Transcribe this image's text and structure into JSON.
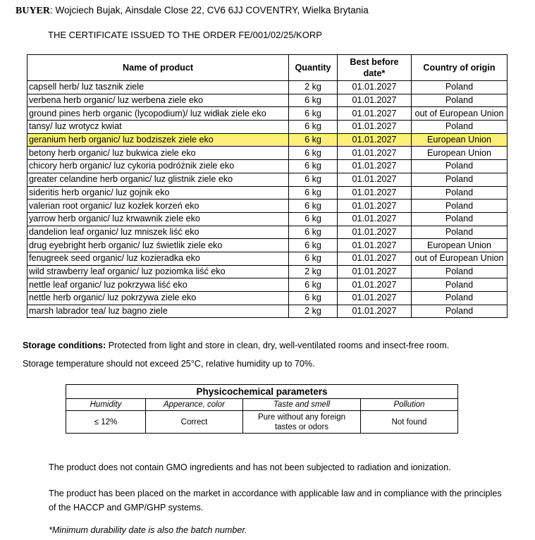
{
  "buyer": {
    "label": "BUYER",
    "text": ": Wojciech Bujak, Ainsdale Close 22, CV6 6JJ COVENTRY, Wielka Brytania"
  },
  "order_title": "THE CERTIFICATE ISSUED TO THE ORDER FE/001/02/25/KORP",
  "products_table": {
    "headers": [
      "Name of product",
      "Quantity",
      "Best before date*",
      "Country of origin"
    ],
    "highlight_color": "#fdf07a",
    "rows": [
      {
        "name": "capsell herb/ luz tasznik ziele",
        "qty": "2 kg",
        "date": "01.01.2027",
        "origin": "Poland"
      },
      {
        "name": "verbena herb organic/ luz werbena ziele eko",
        "qty": "6 kg",
        "date": "01.01.2027",
        "origin": "Poland"
      },
      {
        "name": "ground pines herb organic (lycopodium)/ luz widłak ziele eko",
        "qty": "6 kg",
        "date": "01.01.2027",
        "origin": "out of European Union"
      },
      {
        "name": "tansy/ luz wrotycz kwiat",
        "qty": "6 kg",
        "date": "01.01.2027",
        "origin": "Poland"
      },
      {
        "name": "geranium herb organic/ luz bodziszek ziele eko",
        "qty": "6 kg",
        "date": "01.01.2027",
        "origin": "European Union",
        "highlighted": true
      },
      {
        "name": "betony herb organic/ luz bukwica ziele eko",
        "qty": "6 kg",
        "date": "01.01.2027",
        "origin": "European Union"
      },
      {
        "name": "chicory herb organic/ luz cykoria podróżnik ziele eko",
        "qty": "6 kg",
        "date": "01.01.2027",
        "origin": "Poland"
      },
      {
        "name": "greater celandine herb organic/ luz glistnik ziele eko",
        "qty": "6 kg",
        "date": "01.01.2027",
        "origin": "Poland"
      },
      {
        "name": "sideritis herb organic/ luz gojnik eko",
        "qty": "6 kg",
        "date": "01.01.2027",
        "origin": "Poland"
      },
      {
        "name": "valerian root organic/ luz kozłek korzeń eko",
        "qty": "6 kg",
        "date": "01.01.2027",
        "origin": "Poland"
      },
      {
        "name": "yarrow herb organic/ luz krwawnik ziele eko",
        "qty": "6 kg",
        "date": "01.01.2027",
        "origin": "Poland"
      },
      {
        "name": "dandelion leaf organic/ luz mniszek liść eko",
        "qty": "6 kg",
        "date": "01.01.2027",
        "origin": "Poland"
      },
      {
        "name": "drug eyebright herb organic/ luz świetlik ziele eko",
        "qty": "6 kg",
        "date": "01.01.2027",
        "origin": "European Union"
      },
      {
        "name": "fenugreek seed organic/ luz kozieradka eko",
        "qty": "6 kg",
        "date": "01.01.2027",
        "origin": "out of European Union"
      },
      {
        "name": "wild strawberry leaf organic/ luz poziomka liść eko",
        "qty": "2 kg",
        "date": "01.01.2027",
        "origin": "Poland"
      },
      {
        "name": "nettle leaf organic/ luz pokrzywa liść eko",
        "qty": "6 kg",
        "date": "01.01.2027",
        "origin": "Poland"
      },
      {
        "name": "nettle herb organic/ luz pokrzywa ziele eko",
        "qty": "6 kg",
        "date": "01.01.2027",
        "origin": "Poland"
      },
      {
        "name": "marsh labrador tea/ luz bagno ziele",
        "qty": "2 kg",
        "date": "01.01.2027",
        "origin": "Poland"
      }
    ]
  },
  "storage": {
    "label": "Storage conditions:",
    "text": " Protected from light and store in clean, dry, well-ventilated rooms and insect-free room.",
    "temperature": "Storage temperature should not exceed 25°C, relative humidity up to 70%."
  },
  "physico": {
    "title": "Physicochemical parameters",
    "headers": [
      "Humidity",
      "Apperance, color",
      "Taste and smell",
      "Pollution"
    ],
    "values": [
      "≤ 12%",
      "Correct",
      "Pure without any foreign tastes or odors",
      "Not found"
    ]
  },
  "statements": [
    "The product does not contain GMO ingredients and has not been subjected to radiation and ionization.",
    "The product has been placed on the market in accordance with applicable law and in compliance with the principles of the HACCP and GMP/GHP systems."
  ],
  "footnote": "*Minimum durability date is also the batch number."
}
